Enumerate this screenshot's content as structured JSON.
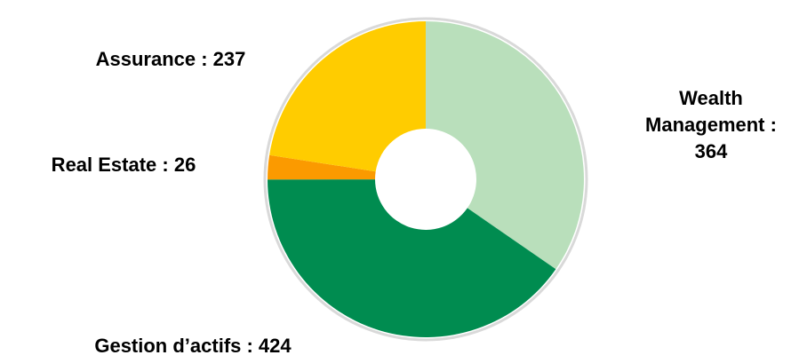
{
  "chart_data": {
    "type": "donut",
    "values": [
      364,
      424,
      26,
      237
    ],
    "value_labels": [
      "Wealth Management : 364",
      "Gestion d’actifs : 424",
      "Real Estate : 26",
      "Assurance : 237"
    ],
    "colors": [
      "#b9dfbb",
      "#008c50",
      "#fb9a00",
      "#ffcc00"
    ]
  }
}
